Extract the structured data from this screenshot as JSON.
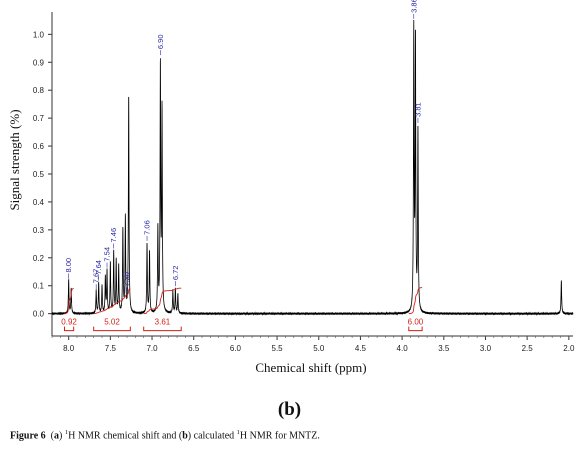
{
  "chart_data": {
    "type": "line",
    "title": "",
    "xlabel": "Chemical shift (ppm)",
    "ylabel": "Signal strength (%)",
    "xlim": [
      8.2,
      1.95
    ],
    "ylim": [
      -0.08,
      1.08
    ],
    "x_ticks": [
      8.0,
      7.5,
      7.0,
      6.5,
      6.0,
      5.5,
      5.0,
      4.5,
      4.0,
      3.5,
      3.0,
      2.5,
      2.0
    ],
    "x_tick_labels": [
      "8.0",
      "7.5",
      "7.0",
      "6.5",
      "6.0",
      "5.5",
      "5.0",
      "4.5",
      "4.0",
      "3.5",
      "3.0",
      "2.5",
      "2.0"
    ],
    "y_ticks": [
      0.0,
      0.1,
      0.2,
      0.3,
      0.4,
      0.5,
      0.6,
      0.7,
      0.8,
      0.9,
      1.0
    ],
    "y_tick_labels": [
      "0.0",
      "0.1",
      "0.2",
      "0.3",
      "0.4",
      "0.5",
      "0.6",
      "0.7",
      "0.8",
      "0.9",
      "1.0"
    ],
    "grid": false,
    "line_color": "#000000",
    "integral_color": "#d0201a",
    "label_color": "#2a2aa8",
    "peaks": [
      {
        "ppm": 8.0,
        "height": 0.12
      },
      {
        "ppm": 7.97,
        "height": 0.09
      },
      {
        "ppm": 7.67,
        "height": 0.08
      },
      {
        "ppm": 7.64,
        "height": 0.11
      },
      {
        "ppm": 7.6,
        "height": 0.1
      },
      {
        "ppm": 7.56,
        "height": 0.13
      },
      {
        "ppm": 7.54,
        "height": 0.15
      },
      {
        "ppm": 7.5,
        "height": 0.18
      },
      {
        "ppm": 7.46,
        "height": 0.22
      },
      {
        "ppm": 7.43,
        "height": 0.19
      },
      {
        "ppm": 7.4,
        "height": 0.17
      },
      {
        "ppm": 7.35,
        "height": 0.3
      },
      {
        "ppm": 7.32,
        "height": 0.34
      },
      {
        "ppm": 7.28,
        "height": 0.78
      },
      {
        "ppm": 7.06,
        "height": 0.25
      },
      {
        "ppm": 7.03,
        "height": 0.22
      },
      {
        "ppm": 6.93,
        "height": 0.3
      },
      {
        "ppm": 6.9,
        "height": 0.88
      },
      {
        "ppm": 6.88,
        "height": 0.72
      },
      {
        "ppm": 6.75,
        "height": 0.08
      },
      {
        "ppm": 6.72,
        "height": 0.09
      },
      {
        "ppm": 6.69,
        "height": 0.07
      },
      {
        "ppm": 3.86,
        "height": 1.0
      },
      {
        "ppm": 3.84,
        "height": 0.97
      },
      {
        "ppm": 3.81,
        "height": 0.65
      },
      {
        "ppm": 2.09,
        "height": 0.12
      }
    ],
    "peak_labels": [
      {
        "ppm": 8.0,
        "text": "8.00"
      },
      {
        "ppm": 7.67,
        "text": "7.67"
      },
      {
        "ppm": 7.64,
        "text": "7.64"
      },
      {
        "ppm": 7.54,
        "text": "7.54"
      },
      {
        "ppm": 7.46,
        "text": "7.46"
      },
      {
        "ppm": 7.3,
        "text": "7.30"
      },
      {
        "ppm": 7.06,
        "text": "7.06"
      },
      {
        "ppm": 6.9,
        "text": "6.90"
      },
      {
        "ppm": 6.72,
        "text": "6.72"
      },
      {
        "ppm": 3.86,
        "text": "3.86"
      },
      {
        "ppm": 3.81,
        "text": "3.81"
      }
    ],
    "integrals": [
      {
        "from": 8.05,
        "to": 7.94,
        "value": "0.92"
      },
      {
        "from": 7.7,
        "to": 7.26,
        "value": "5.02"
      },
      {
        "from": 7.1,
        "to": 6.65,
        "value": "3.61"
      },
      {
        "from": 3.92,
        "to": 3.76,
        "value": "6.00"
      }
    ]
  },
  "panel_label": "(b)",
  "caption": {
    "figure_label": "Figure 6",
    "a": "a",
    "sup_1": "1",
    "part1": "H NMR chemical shift and (",
    "b": "b",
    "part2": ") calculated ",
    "sup_2": "1",
    "part3": "H NMR for MNTZ."
  }
}
